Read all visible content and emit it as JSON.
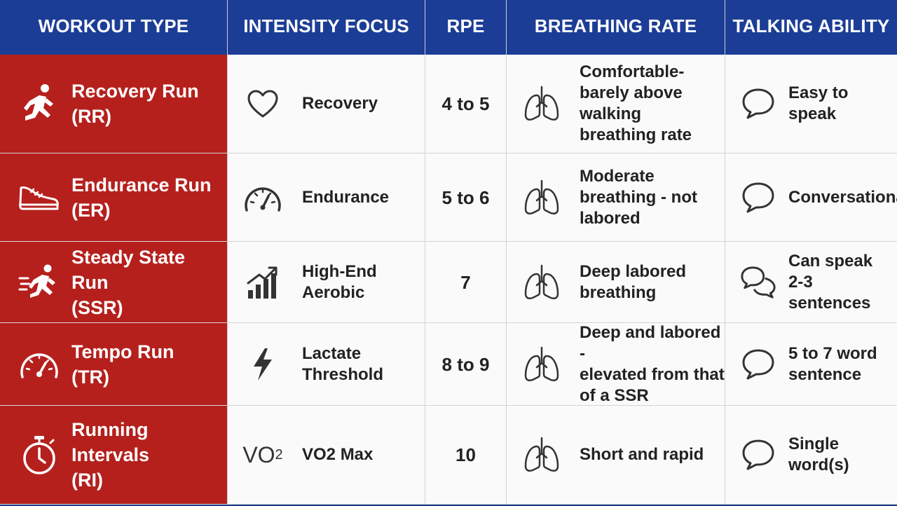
{
  "headers": {
    "workout_type": "WORKOUT TYPE",
    "intensity_focus": "INTENSITY FOCUS",
    "rpe": "RPE",
    "breathing_rate": "BREATHING RATE",
    "talking_ability": "TALKING ABILITY"
  },
  "colors": {
    "header_bg": "#1c3d96",
    "workout_type_bg": "#b5201d",
    "cell_bg": "#fafafa"
  },
  "rows": [
    {
      "workout_type": [
        "Recovery Run",
        "(RR)"
      ],
      "workout_icon": "runner-icon",
      "intensity_focus": [
        "Recovery"
      ],
      "focus_icon": "heart-icon",
      "rpe": "4 to 5",
      "breathing_rate": [
        "Comfortable-",
        "barely above",
        "walking",
        "breathing rate"
      ],
      "talking_ability": [
        "Easy to speak"
      ],
      "talk_icon": "speech-bubble-icon"
    },
    {
      "workout_type": [
        "Endurance Run",
        "(ER)"
      ],
      "workout_icon": "shoe-icon",
      "intensity_focus": [
        "Endurance"
      ],
      "focus_icon": "gauge-icon",
      "rpe": "5 to 6",
      "breathing_rate": [
        "Moderate",
        "breathing - not",
        "labored"
      ],
      "talking_ability": [
        "Conversational"
      ],
      "talk_icon": "speech-bubble-icon"
    },
    {
      "workout_type": [
        "Steady State Run",
        "(SSR)"
      ],
      "workout_icon": "fast-runner-icon",
      "intensity_focus": [
        "High-End",
        "Aerobic"
      ],
      "focus_icon": "bar-chart-up-icon",
      "rpe": "7",
      "breathing_rate": [
        "Deep labored",
        "breathing"
      ],
      "talking_ability": [
        "Can speak",
        "2-3 sentences"
      ],
      "talk_icon": "double-speech-bubble-icon"
    },
    {
      "workout_type": [
        "Tempo Run",
        "(TR)"
      ],
      "workout_icon": "speedometer-icon",
      "intensity_focus": [
        "Lactate",
        "Threshold"
      ],
      "focus_icon": "lightning-icon",
      "rpe": "8 to 9",
      "breathing_rate": [
        "Deep and labored -",
        "elevated from that",
        "of a SSR"
      ],
      "talking_ability": [
        "5 to 7 word",
        "sentence"
      ],
      "talk_icon": "speech-bubble-icon"
    },
    {
      "workout_type": [
        "Running Intervals",
        "(RI)"
      ],
      "workout_icon": "stopwatch-icon",
      "intensity_focus": [
        "VO2 Max"
      ],
      "focus_icon": "vo2-icon",
      "focus_icon_text": "VO",
      "focus_icon_sub": "2",
      "rpe": "10",
      "breathing_rate": [
        "Short and rapid"
      ],
      "talking_ability": [
        "Single",
        "word(s)"
      ],
      "talk_icon": "speech-bubble-icon"
    }
  ]
}
